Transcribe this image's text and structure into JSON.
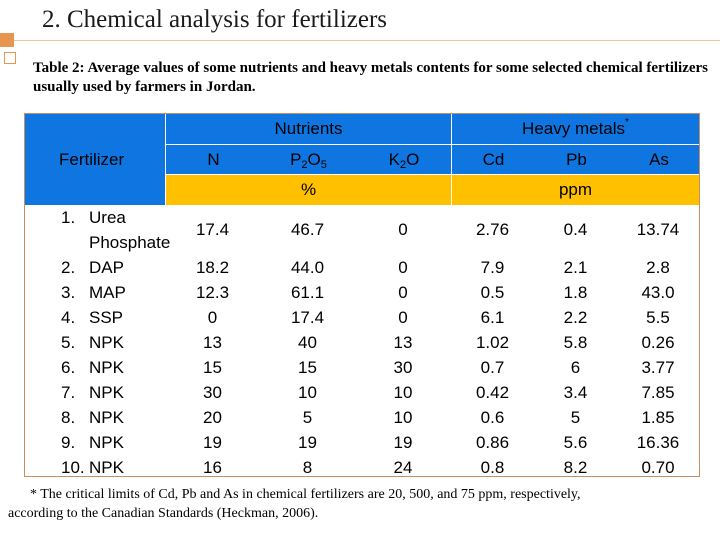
{
  "slide": {
    "title": "2.   Chemical analysis for fertilizers"
  },
  "table": {
    "caption": "Table 2: Average values of some nutrients and heavy metals contents for some selected chemical fertilizers usually used by farmers in Jordan.",
    "headers": {
      "fertilizer": "Fertilizer",
      "nutrients": "Nutrients",
      "heavy_metals": "Heavy metals",
      "heavy_metals_mark": "*",
      "n": "N",
      "p2o5_p": "P",
      "p2o5_2": "2",
      "p2o5_o": "O",
      "p2o5_5": "5",
      "k2o_k": "K",
      "k2o_2": "2",
      "k2o_o": "O",
      "cd": "Cd",
      "pb": "Pb",
      "as": "As",
      "unit_percent": "%",
      "unit_ppm": "ppm"
    },
    "fertilizers": [
      {
        "num": "1.",
        "name": "Urea"
      },
      {
        "num": "",
        "name": "Phosphate"
      },
      {
        "num": "2.",
        "name": "DAP"
      },
      {
        "num": "3.",
        "name": "MAP"
      },
      {
        "num": "4.",
        "name": "SSP"
      },
      {
        "num": "5.",
        "name": "NPK"
      },
      {
        "num": "6.",
        "name": "NPK"
      },
      {
        "num": "7.",
        "name": "NPK"
      },
      {
        "num": "8.",
        "name": "NPK"
      },
      {
        "num": "9.",
        "name": "NPK"
      },
      {
        "num": "10.",
        "name": "NPK"
      }
    ],
    "columns": {
      "n": [
        "17.4",
        "18.2",
        "12.3",
        "0",
        "13",
        "15",
        "30",
        "20",
        "19",
        "16"
      ],
      "p2o5": [
        "46.7",
        "44.0",
        "61.1",
        "17.4",
        "40",
        "15",
        "10",
        "5",
        "19",
        "8"
      ],
      "k2o": [
        "0",
        "0",
        "0",
        "0",
        "13",
        "30",
        "10",
        "10",
        "19",
        "24"
      ],
      "cd": [
        "2.76",
        "7.9",
        "0.5",
        "6.1",
        "1.02",
        "0.7",
        "0.42",
        "0.6",
        "0.86",
        "0.8"
      ],
      "pb": [
        "0.4",
        "2.1",
        "1.8",
        "2.2",
        "5.8",
        "6",
        "3.4",
        "5",
        "5.6",
        "8.2"
      ],
      "as": [
        "13.74",
        "2.8",
        "43.0",
        "5.5",
        "0.26",
        "3.77",
        "7.85",
        "1.85",
        "16.36",
        "0.70"
      ]
    }
  },
  "footnote": {
    "line1": "* The critical limits of Cd, Pb and As in chemical fertilizers are 20, 500, and 75 ppm, respectively,",
    "line2": "according to the Canadian Standards (Heckman, 2006)."
  },
  "colors": {
    "header_blue": "#0f75e0",
    "unit_orange": "#ffc000",
    "accent": "#e8954f"
  }
}
